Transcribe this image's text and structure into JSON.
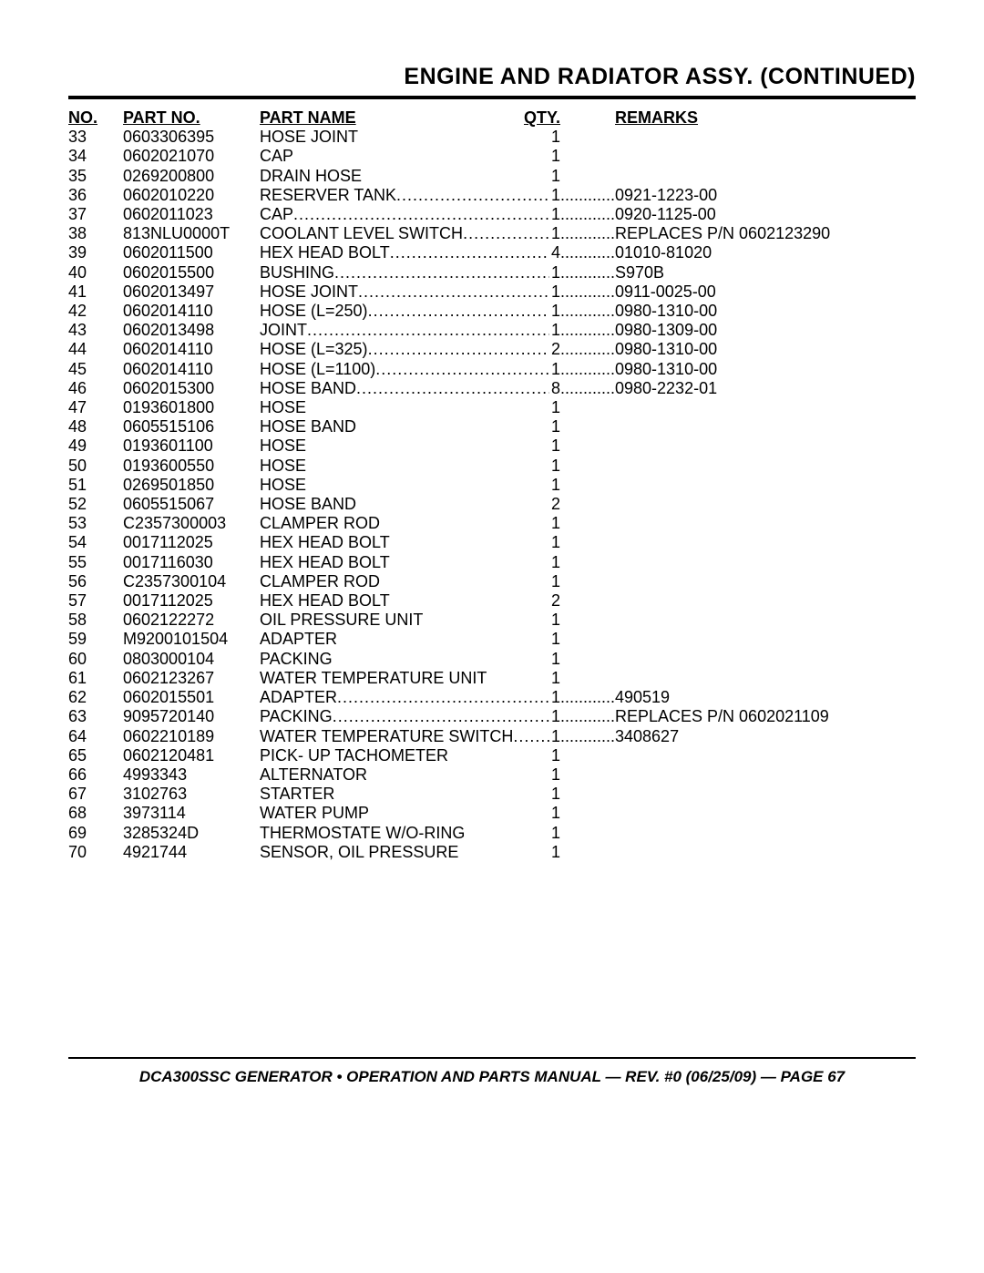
{
  "title": "ENGINE AND RADIATOR ASSY. (CONTINUED)",
  "headers": {
    "no": "NO.",
    "part": "PART NO.",
    "name": "PART NAME",
    "qty": "QTY.",
    "remarks": "REMARKS"
  },
  "footer": "DCA300SSC GENERATOR • OPERATION AND PARTS MANUAL — REV. #0 (06/25/09) — PAGE 67",
  "rows": [
    {
      "no": "33",
      "part": "0603306395",
      "name": "HOSE JOINT",
      "qty": "1",
      "remarks": "",
      "dots": false
    },
    {
      "no": "34",
      "part": "0602021070",
      "name": "CAP",
      "qty": "1",
      "remarks": "",
      "dots": false
    },
    {
      "no": "35",
      "part": "0269200800",
      "name": "DRAIN HOSE",
      "qty": "1",
      "remarks": "",
      "dots": false
    },
    {
      "no": "36",
      "part": "0602010220",
      "name": "RESERVER TANK",
      "qty": "1",
      "remarks": "0921-1223-00",
      "dots": true
    },
    {
      "no": "37",
      "part": "0602011023",
      "name": "CAP",
      "qty": "1",
      "remarks": "0920-1125-00",
      "dots": true
    },
    {
      "no": "38",
      "part": "813NLU0000T",
      "name": "COOLANT LEVEL SWITCH",
      "qty": "1",
      "remarks": "REPLACES P/N 0602123290",
      "dots": true
    },
    {
      "no": "39",
      "part": "0602011500",
      "name": "HEX HEAD BOLT",
      "qty": "4",
      "remarks": "01010-81020",
      "dots": true
    },
    {
      "no": "40",
      "part": "0602015500",
      "name": "BUSHING",
      "qty": "1",
      "remarks": "S970B",
      "dots": true
    },
    {
      "no": "41",
      "part": "0602013497",
      "name": "HOSE JOINT",
      "qty": "1",
      "remarks": "0911-0025-00",
      "dots": true
    },
    {
      "no": "42",
      "part": "0602014110",
      "name": "HOSE (L=250)",
      "qty": "1",
      "remarks": "0980-1310-00",
      "dots": true
    },
    {
      "no": "43",
      "part": "0602013498",
      "name": "JOINT",
      "qty": "1",
      "remarks": "0980-1309-00",
      "dots": true
    },
    {
      "no": "44",
      "part": "0602014110",
      "name": "HOSE (L=325)",
      "qty": "2",
      "remarks": "0980-1310-00",
      "dots": true
    },
    {
      "no": "45",
      "part": "0602014110",
      "name": "HOSE (L=1100)",
      "qty": "1",
      "remarks": "0980-1310-00",
      "dots": true
    },
    {
      "no": "46",
      "part": "0602015300",
      "name": "HOSE BAND",
      "qty": "8",
      "remarks": "0980-2232-01",
      "dots": true
    },
    {
      "no": "47",
      "part": "0193601800",
      "name": "HOSE",
      "qty": "1",
      "remarks": "",
      "dots": false
    },
    {
      "no": "48",
      "part": "0605515106",
      "name": "HOSE BAND",
      "qty": "1",
      "remarks": "",
      "dots": false
    },
    {
      "no": "49",
      "part": "0193601100",
      "name": "HOSE",
      "qty": "1",
      "remarks": "",
      "dots": false
    },
    {
      "no": "50",
      "part": "0193600550",
      "name": "HOSE",
      "qty": "1",
      "remarks": "",
      "dots": false
    },
    {
      "no": "51",
      "part": "0269501850",
      "name": "HOSE",
      "qty": "1",
      "remarks": "",
      "dots": false
    },
    {
      "no": "52",
      "part": "0605515067",
      "name": "HOSE BAND",
      "qty": "2",
      "remarks": "",
      "dots": false
    },
    {
      "no": "53",
      "part": "C2357300003",
      "name": "CLAMPER ROD",
      "qty": "1",
      "remarks": "",
      "dots": false
    },
    {
      "no": "54",
      "part": "0017112025",
      "name": "HEX HEAD BOLT",
      "qty": "1",
      "remarks": "",
      "dots": false
    },
    {
      "no": "55",
      "part": "0017116030",
      "name": "HEX HEAD BOLT",
      "qty": "1",
      "remarks": "",
      "dots": false
    },
    {
      "no": "56",
      "part": "C2357300104",
      "name": "CLAMPER ROD",
      "qty": "1",
      "remarks": "",
      "dots": false
    },
    {
      "no": "57",
      "part": "0017112025",
      "name": "HEX HEAD BOLT",
      "qty": "2",
      "remarks": "",
      "dots": false
    },
    {
      "no": "58",
      "part": "0602122272",
      "name": "OIL PRESSURE UNIT",
      "qty": "1",
      "remarks": "",
      "dots": false
    },
    {
      "no": "59",
      "part": "M9200101504",
      "name": "ADAPTER",
      "qty": "1",
      "remarks": "",
      "dots": false
    },
    {
      "no": "60",
      "part": "0803000104",
      "name": "PACKING",
      "qty": "1",
      "remarks": "",
      "dots": false
    },
    {
      "no": "61",
      "part": "0602123267",
      "name": "WATER TEMPERATURE UNIT",
      "qty": "1",
      "remarks": "",
      "dots": false
    },
    {
      "no": "62",
      "part": "0602015501",
      "name": "ADAPTER",
      "qty": "1",
      "remarks": "490519",
      "dots": true
    },
    {
      "no": "63",
      "part": "9095720140",
      "name": "PACKING",
      "qty": "1",
      "remarks": "REPLACES P/N 0602021109",
      "dots": true
    },
    {
      "no": "64",
      "part": "0602210189",
      "name": "WATER TEMPERATURE SWITCH",
      "qty": "1",
      "remarks": "3408627",
      "dots": true
    },
    {
      "no": "65",
      "part": "0602120481",
      "name": "PICK- UP TACHOMETER",
      "qty": "1",
      "remarks": "",
      "dots": false
    },
    {
      "no": "66",
      "part": "4993343",
      "name": "ALTERNATOR",
      "qty": "1",
      "remarks": "",
      "dots": false
    },
    {
      "no": "67",
      "part": "3102763",
      "name": "STARTER",
      "qty": "1",
      "remarks": "",
      "dots": false
    },
    {
      "no": "68",
      "part": "3973114",
      "name": "WATER PUMP",
      "qty": "1",
      "remarks": "",
      "dots": false
    },
    {
      "no": "69",
      "part": "3285324D",
      "name": "THERMOSTATE W/O-RING",
      "qty": "1",
      "remarks": "",
      "dots": false
    },
    {
      "no": "70",
      "part": "4921744",
      "name": "SENSOR, OIL PRESSURE",
      "qty": "1",
      "remarks": "",
      "dots": false
    }
  ]
}
